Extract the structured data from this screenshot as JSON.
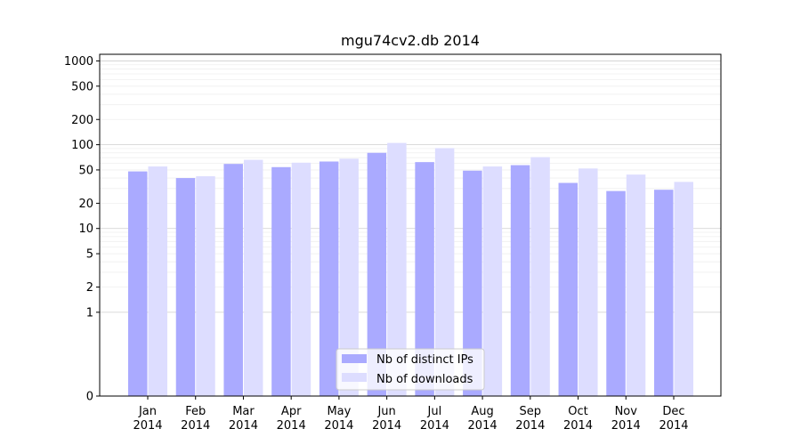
{
  "chart_data": {
    "type": "bar",
    "title": "mgu74cv2.db 2014",
    "xlabel": "",
    "ylabel": "",
    "yscale": "symlog",
    "ylim": [
      0,
      1200
    ],
    "yticks": [
      0,
      1,
      2,
      5,
      10,
      20,
      50,
      100,
      200,
      500,
      1000
    ],
    "ytick_labels": [
      "0",
      "1",
      "2",
      "5",
      "10",
      "20",
      "50",
      "100",
      "200",
      "500",
      "1000"
    ],
    "categories": [
      [
        "Jan",
        "2014"
      ],
      [
        "Feb",
        "2014"
      ],
      [
        "Mar",
        "2014"
      ],
      [
        "Apr",
        "2014"
      ],
      [
        "May",
        "2014"
      ],
      [
        "Jun",
        "2014"
      ],
      [
        "Jul",
        "2014"
      ],
      [
        "Aug",
        "2014"
      ],
      [
        "Sep",
        "2014"
      ],
      [
        "Oct",
        "2014"
      ],
      [
        "Nov",
        "2014"
      ],
      [
        "Dec",
        "2014"
      ]
    ],
    "series": [
      {
        "name": "Nb of distinct IPs",
        "color": "#aaaaff",
        "values": [
          48,
          40,
          59,
          54,
          63,
          80,
          62,
          49,
          57,
          35,
          28,
          29
        ]
      },
      {
        "name": "Nb of downloads",
        "color": "#ddddff",
        "values": [
          55,
          42,
          66,
          61,
          68,
          105,
          91,
          55,
          71,
          52,
          44,
          36
        ]
      }
    ],
    "grid": true,
    "legend_position": "lower center"
  }
}
